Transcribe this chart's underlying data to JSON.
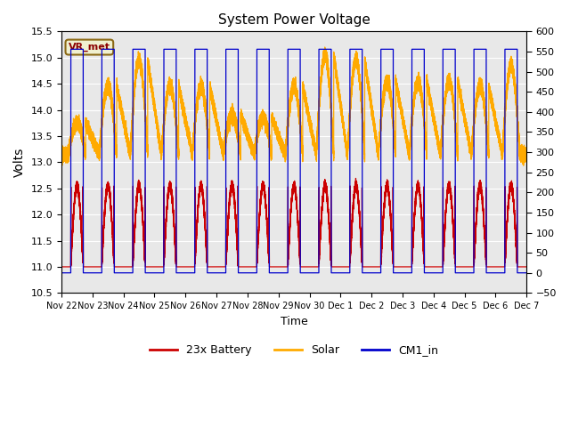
{
  "title": "System Power Voltage",
  "xlabel": "Time",
  "ylabel": "Volts",
  "ylim_left": [
    10.5,
    15.5
  ],
  "ylim_right": [
    -50,
    600
  ],
  "yticks_left": [
    10.5,
    11.0,
    11.5,
    12.0,
    12.5,
    13.0,
    13.5,
    14.0,
    14.5,
    15.0,
    15.5
  ],
  "yticks_right": [
    -50,
    0,
    50,
    100,
    150,
    200,
    250,
    300,
    350,
    400,
    450,
    500,
    550,
    600
  ],
  "plot_bg_color": "#e8e8e8",
  "grid_color": "white",
  "legend_labels": [
    "23x Battery",
    "Solar",
    "CM1_in"
  ],
  "legend_colors": [
    "#cc0000",
    "#ffaa00",
    "#0000cc"
  ],
  "annotation_text": "VR_met",
  "annotation_color": "#8b0000",
  "annotation_bg": "#f0f0d0",
  "annotation_border": "#8b6914",
  "xtick_labels": [
    "Nov 22",
    "Nov 23",
    "Nov 24",
    "Nov 25",
    "Nov 26",
    "Nov 27",
    "Nov 28",
    "Nov 29",
    "Nov 30",
    "Dec 1",
    "Dec 2",
    "Dec 3",
    "Dec 4",
    "Dec 5",
    "Dec 6",
    "Dec 7"
  ],
  "xtick_positions": [
    0,
    1,
    2,
    3,
    4,
    5,
    6,
    7,
    8,
    9,
    10,
    11,
    12,
    13,
    14,
    15
  ],
  "days": 15,
  "night_battery": 11.0,
  "night_solar": 13.15,
  "cm1_high": 15.16,
  "cm1_low": 10.885,
  "bat_day_peak": 12.55,
  "sol_day_peak": 14.6,
  "charge_on": 0.3,
  "charge_off": 0.7,
  "solar_on": 0.22,
  "solar_off": 0.78
}
